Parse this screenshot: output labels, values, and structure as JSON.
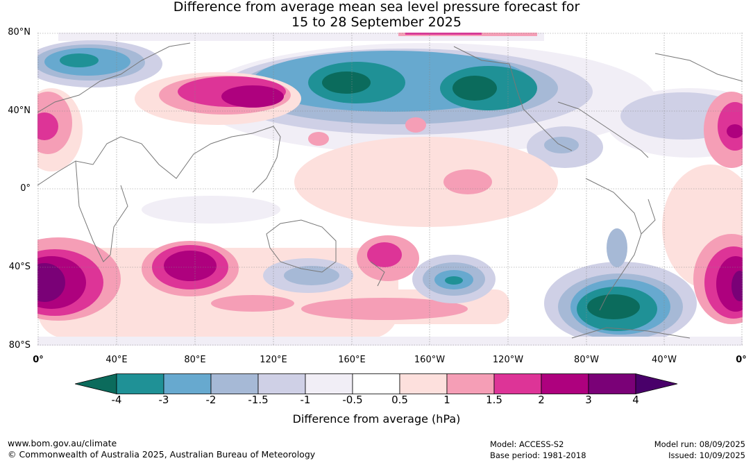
{
  "title": {
    "line1": "Difference from average mean sea level pressure forecast for",
    "line2": "15 to 28 September 2025"
  },
  "axes": {
    "lat_labels": [
      "80°N",
      "40°N",
      "0°",
      "40°S",
      "80°S"
    ],
    "lon_labels": [
      "0°",
      "40°E",
      "80°E",
      "120°E",
      "160°E",
      "160°W",
      "120°W",
      "80°W",
      "40°W",
      "0°"
    ],
    "lat_range": [
      -80,
      80
    ],
    "lon_range": [
      0,
      360
    ],
    "grid": true
  },
  "colorbar": {
    "ticks": [
      "-4",
      "-3",
      "-2",
      "-1.5",
      "-1",
      "-0.5",
      "0.5",
      "1",
      "1.5",
      "2",
      "3",
      "4"
    ],
    "colors": [
      "#0b6b5c",
      "#1f9196",
      "#67a9cf",
      "#a6b9d6",
      "#cfd0e6",
      "#f1eef6",
      "#ffffff",
      "#fde0dd",
      "#f59eb6",
      "#dd3497",
      "#ae017e",
      "#7a0177",
      "#49006a"
    ],
    "label": "Difference from average (hPa)"
  },
  "footer": {
    "url": "www.bom.gov.au/climate",
    "copyright": "© Commonwealth of Australia 2025, Australian Bureau of Meteorology",
    "model": "Model: ACCESS-S2",
    "base_period": "Base period: 1981-2018",
    "model_run": "Model run: 08/09/2025",
    "issued": "Issued: 10/09/2025"
  }
}
